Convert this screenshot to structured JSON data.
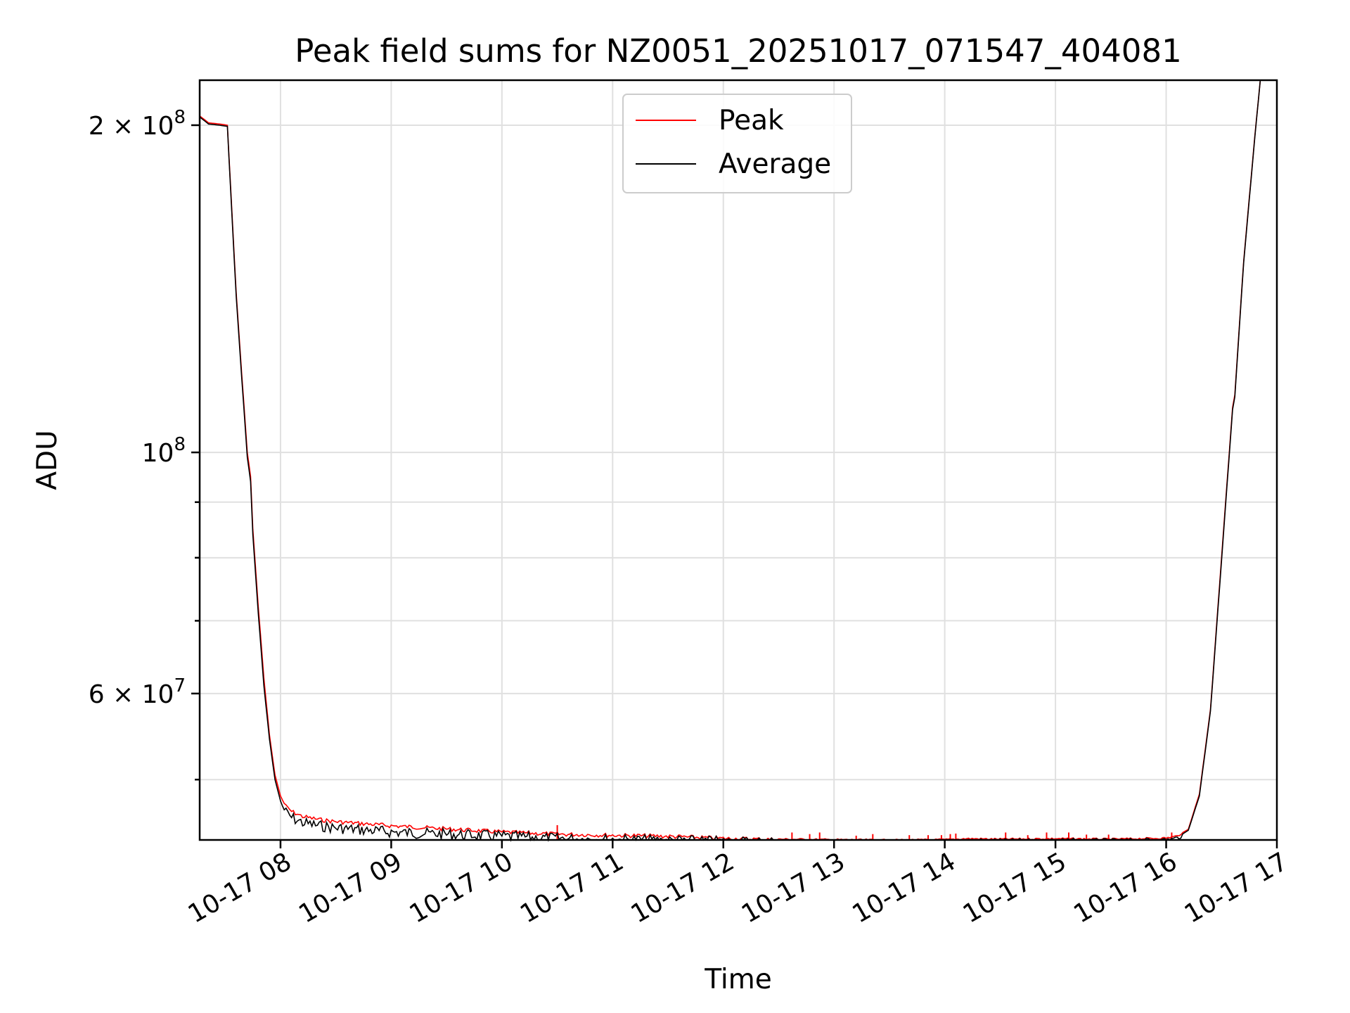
{
  "chart_data": {
    "type": "line",
    "title": "Peak field sums for NZ0051_20251017_071547_404081",
    "xlabel": "Time",
    "ylabel": "ADU",
    "yscale": "log",
    "xlim_hours": [
      7.27,
      17.0
    ],
    "ylim": [
      44000000,
      220000000
    ],
    "grid": true,
    "legend_position": "top-center",
    "x_ticks": [
      {
        "value": 8,
        "label": "10-17 08"
      },
      {
        "value": 9,
        "label": "10-17 09"
      },
      {
        "value": 10,
        "label": "10-17 10"
      },
      {
        "value": 11,
        "label": "10-17 11"
      },
      {
        "value": 12,
        "label": "10-17 12"
      },
      {
        "value": 13,
        "label": "10-17 13"
      },
      {
        "value": 14,
        "label": "10-17 14"
      },
      {
        "value": 15,
        "label": "10-17 15"
      },
      {
        "value": 16,
        "label": "10-17 16"
      },
      {
        "value": 17,
        "label": "10-17 17"
      }
    ],
    "y_major_ticks": [
      {
        "value": 200000000,
        "label": "2 × 10",
        "exp": "8"
      },
      {
        "value": 100000000,
        "label": "10",
        "exp": "8"
      },
      {
        "value": 60000000,
        "label": "6 × 10",
        "exp": "7"
      }
    ],
    "y_minor_ticks": [
      50000000,
      70000000,
      80000000,
      90000000
    ],
    "series": [
      {
        "name": "Peak",
        "color": "#ff0000",
        "x_hours": [
          7.27,
          7.35,
          7.45,
          7.52,
          7.55,
          7.6,
          7.65,
          7.7,
          7.73,
          7.75,
          7.8,
          7.85,
          7.9,
          7.95,
          8.0,
          8.05,
          8.1,
          8.2,
          8.35,
          8.5,
          8.75,
          9.0,
          9.5,
          10.0,
          10.5,
          11.0,
          11.5,
          12.0,
          12.5,
          13.0,
          13.5,
          14.0,
          14.2,
          14.5,
          15.0,
          15.5,
          16.0,
          16.1,
          16.2,
          16.3,
          16.4,
          16.5,
          16.6,
          16.62,
          16.7,
          16.8,
          16.85
        ],
        "values": [
          204000000,
          201000000,
          200500000,
          200000000,
          175000000,
          140000000,
          118000000,
          100000000,
          95000000,
          85000000,
          72000000,
          62000000,
          55000000,
          50500000,
          48300000,
          47300000,
          46800000,
          46300000,
          46000000,
          45800000,
          45600000,
          45400000,
          45100000,
          44800000,
          44600000,
          44500000,
          44400000,
          44200000,
          44100000,
          44050000,
          44000000,
          44050000,
          44150000,
          44100000,
          44150000,
          44100000,
          44200000,
          44400000,
          45000000,
          48500000,
          58000000,
          80000000,
          110000000,
          113000000,
          150000000,
          195000000,
          220000000
        ]
      },
      {
        "name": "Average",
        "color": "#000000",
        "x_hours": [
          7.27,
          7.35,
          7.45,
          7.52,
          7.55,
          7.6,
          7.65,
          7.7,
          7.73,
          7.75,
          7.8,
          7.85,
          7.9,
          7.95,
          8.0,
          8.05,
          8.1,
          8.2,
          8.35,
          8.5,
          8.75,
          9.0,
          9.5,
          10.0,
          10.5,
          11.0,
          11.5,
          12.0,
          12.5,
          13.0,
          13.5,
          14.0,
          14.2,
          14.5,
          15.0,
          15.5,
          16.0,
          16.1,
          16.2,
          16.3,
          16.4,
          16.5,
          16.6,
          16.62,
          16.7,
          16.8,
          16.85
        ],
        "values": [
          203500000,
          200500000,
          200000000,
          199500000,
          174000000,
          139000000,
          117000000,
          99000000,
          94000000,
          84000000,
          71000000,
          61000000,
          54500000,
          50000000,
          47800000,
          46800000,
          46300000,
          45800000,
          45500000,
          45300000,
          45100000,
          44900000,
          44700000,
          44500000,
          44300000,
          44200000,
          44100000,
          44000000,
          43950000,
          43900000,
          43850000,
          43900000,
          44000000,
          43950000,
          44000000,
          43950000,
          44050000,
          44250000,
          44900000,
          48300000,
          57800000,
          79500000,
          109500000,
          112500000,
          149500000,
          194500000,
          220000000
        ]
      }
    ],
    "peak_spikes": [
      {
        "x_hours": 10.5,
        "value": 45400000
      },
      {
        "x_hours": 12.62,
        "value": 44700000
      },
      {
        "x_hours": 12.78,
        "value": 44550000
      },
      {
        "x_hours": 12.87,
        "value": 44700000
      },
      {
        "x_hours": 13.2,
        "value": 44400000
      },
      {
        "x_hours": 13.35,
        "value": 44550000
      },
      {
        "x_hours": 13.68,
        "value": 44450000
      },
      {
        "x_hours": 13.85,
        "value": 44450000
      },
      {
        "x_hours": 13.97,
        "value": 44450000
      },
      {
        "x_hours": 14.05,
        "value": 44550000
      },
      {
        "x_hours": 14.1,
        "value": 44600000
      },
      {
        "x_hours": 14.55,
        "value": 44700000
      },
      {
        "x_hours": 14.75,
        "value": 44450000
      },
      {
        "x_hours": 14.92,
        "value": 44700000
      },
      {
        "x_hours": 15.12,
        "value": 44700000
      },
      {
        "x_hours": 15.28,
        "value": 44500000
      },
      {
        "x_hours": 15.48,
        "value": 44500000
      },
      {
        "x_hours": 16.05,
        "value": 44700000
      }
    ]
  }
}
